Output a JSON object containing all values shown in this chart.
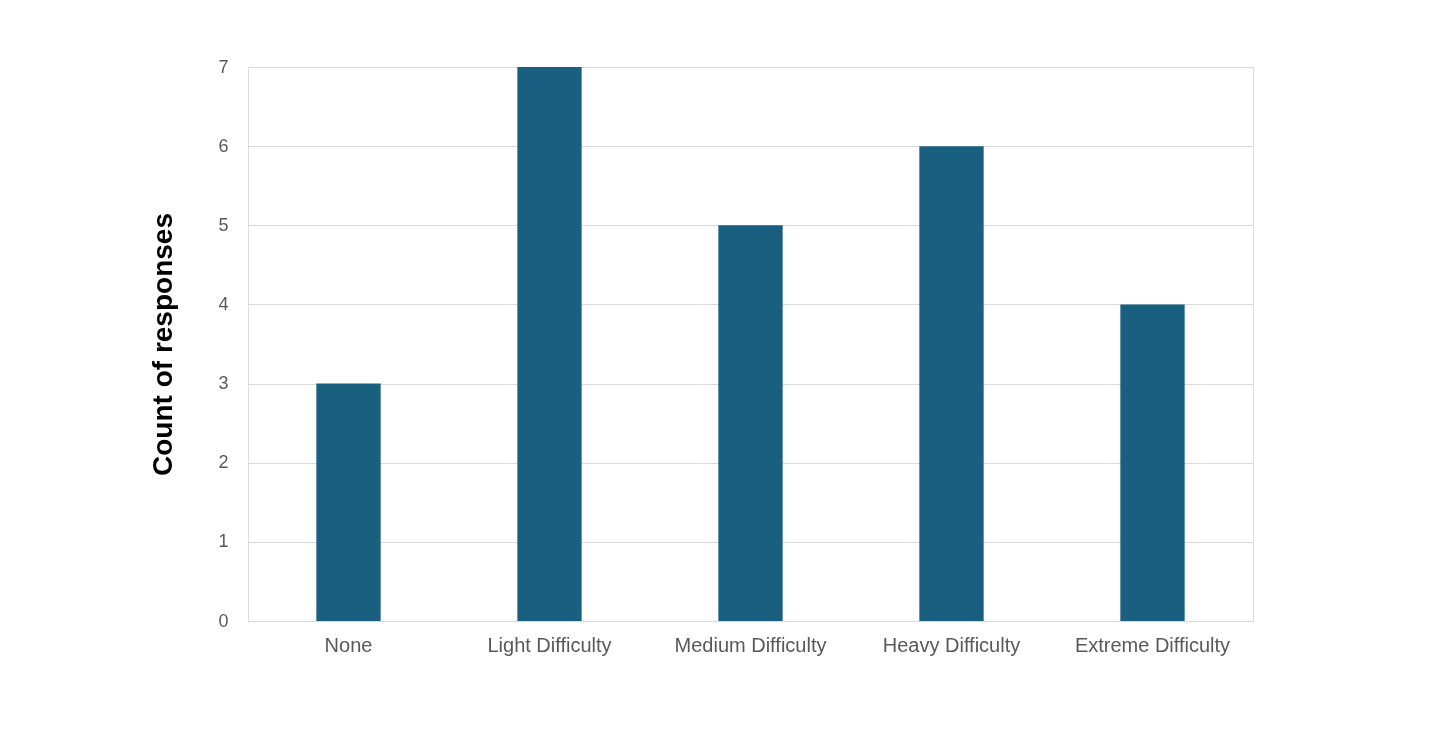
{
  "chart_data": {
    "type": "bar",
    "ylabel": "Count of responses",
    "categories": [
      "None",
      "Light Difficulty",
      "Medium Difficulty",
      "Heavy Difficulty",
      "Extreme Difficulty"
    ],
    "values": [
      3,
      7,
      5,
      6,
      4
    ],
    "color": "#185f80",
    "ylim": [
      0,
      7
    ],
    "yticks": [
      0,
      1,
      2,
      3,
      4,
      5,
      6,
      7
    ],
    "grid": "y"
  }
}
